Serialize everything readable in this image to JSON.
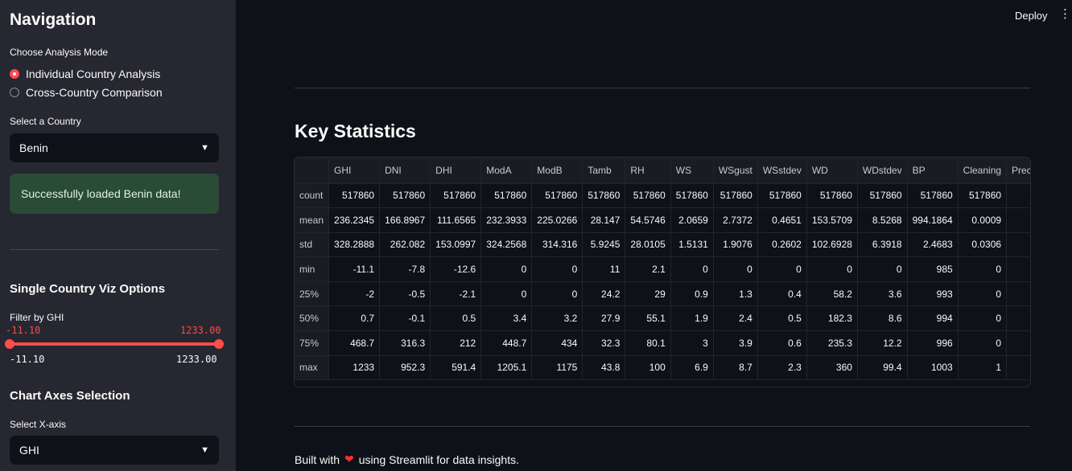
{
  "sidebar": {
    "title": "Navigation",
    "mode_label": "Choose Analysis Mode",
    "modes": [
      {
        "label": "Individual Country Analysis",
        "selected": true
      },
      {
        "label": "Cross-Country Comparison",
        "selected": false
      }
    ],
    "country_label": "Select a Country",
    "country_value": "Benin",
    "success_message": "Successfully loaded Benin data!",
    "viz_options_title": "Single Country Viz Options",
    "filter_label": "Filter by GHI",
    "slider": {
      "min": "-11.10",
      "max": "1233.00",
      "low": "-11.10",
      "high": "1233.00"
    },
    "axes_title": "Chart Axes Selection",
    "xaxis_label": "Select X-axis",
    "xaxis_value": "GHI"
  },
  "header": {
    "deploy_label": "Deploy",
    "menu_icon": "kebab-menu-icon"
  },
  "main": {
    "title": "Key Statistics",
    "table": {
      "columns": [
        "GHI",
        "DNI",
        "DHI",
        "ModA",
        "ModB",
        "Tamb",
        "RH",
        "WS",
        "WSgust",
        "WSstdev",
        "WD",
        "WDstdev",
        "BP",
        "Cleaning",
        "Precip"
      ],
      "rows": [
        {
          "label": "count",
          "values": [
            "517860",
            "517860",
            "517860",
            "517860",
            "517860",
            "517860",
            "517860",
            "517860",
            "517860",
            "517860",
            "517860",
            "517860",
            "517860",
            "517860",
            ""
          ]
        },
        {
          "label": "mean",
          "values": [
            "236.2345",
            "166.8967",
            "111.6565",
            "232.3933",
            "225.0266",
            "28.147",
            "54.5746",
            "2.0659",
            "2.7372",
            "0.4651",
            "153.5709",
            "8.5268",
            "994.1864",
            "0.0009",
            ""
          ]
        },
        {
          "label": "std",
          "values": [
            "328.2888",
            "262.082",
            "153.0997",
            "324.2568",
            "314.316",
            "5.9245",
            "28.0105",
            "1.5131",
            "1.9076",
            "0.2602",
            "102.6928",
            "6.3918",
            "2.4683",
            "0.0306",
            ""
          ]
        },
        {
          "label": "min",
          "values": [
            "-11.1",
            "-7.8",
            "-12.6",
            "0",
            "0",
            "11",
            "2.1",
            "0",
            "0",
            "0",
            "0",
            "0",
            "985",
            "0",
            ""
          ]
        },
        {
          "label": "25%",
          "values": [
            "-2",
            "-0.5",
            "-2.1",
            "0",
            "0",
            "24.2",
            "29",
            "0.9",
            "1.3",
            "0.4",
            "58.2",
            "3.6",
            "993",
            "0",
            ""
          ]
        },
        {
          "label": "50%",
          "values": [
            "0.7",
            "-0.1",
            "0.5",
            "3.4",
            "3.2",
            "27.9",
            "55.1",
            "1.9",
            "2.4",
            "0.5",
            "182.3",
            "8.6",
            "994",
            "0",
            ""
          ]
        },
        {
          "label": "75%",
          "values": [
            "468.7",
            "316.3",
            "212",
            "448.7",
            "434",
            "32.3",
            "80.1",
            "3",
            "3.9",
            "0.6",
            "235.3",
            "12.2",
            "996",
            "0",
            ""
          ]
        },
        {
          "label": "max",
          "values": [
            "1233",
            "952.3",
            "591.4",
            "1205.1",
            "1175",
            "43.8",
            "100",
            "6.9",
            "8.7",
            "2.3",
            "360",
            "99.4",
            "1003",
            "1",
            ""
          ]
        }
      ]
    },
    "footer": {
      "before": "Built with",
      "after": "using Streamlit for data insights.",
      "heart": "❤"
    }
  },
  "colors": {
    "accent": "#ff4b4b",
    "sidebar_bg": "#262730",
    "main_bg": "#0e1117",
    "success_bg": "#2a4b36"
  }
}
